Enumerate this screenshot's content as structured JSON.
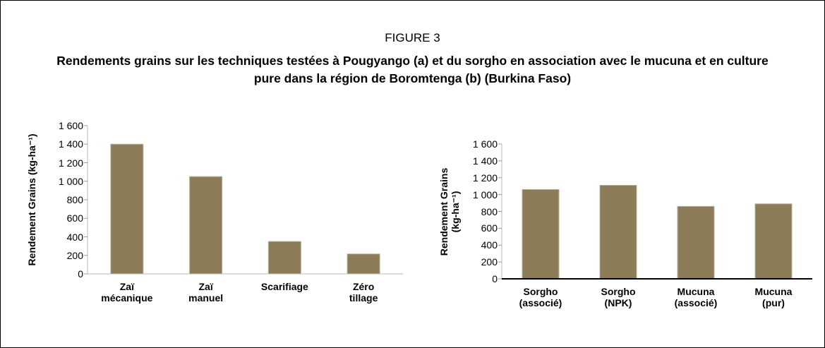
{
  "figure": "FIGURE 3",
  "title": "Rendements grains sur les techniques testées à Pougyango (a) et du sorgho en association avec le mucuna et en culture pure dans la région de Boromtenga (b) (Burkina Faso)",
  "chart_data": [
    {
      "type": "bar",
      "y_label": "Rendement Grains (kg-ha⁻¹)",
      "categories": [
        "Zaï mécanique",
        "Zaï manuel",
        "Scarifiage",
        "Zéro tillage"
      ],
      "values": [
        1400,
        1050,
        350,
        215
      ],
      "color": "#8c7b57",
      "ylim": [
        0,
        1600
      ],
      "yticks": [
        0,
        200,
        400,
        600,
        800,
        {
          "value": 1000,
          "label": "1 000"
        },
        {
          "value": 1200,
          "label": "1 200"
        },
        {
          "value": 1400,
          "label": "1 400"
        },
        {
          "value": 1600,
          "label": "1 600"
        }
      ]
    },
    {
      "type": "bar",
      "y_label": "Rendement Grains (kg-ha⁻¹)",
      "categories": [
        "Sorgho (associé)",
        "Sorgho (NPK)",
        "Mucuna (associé)",
        "Mucuna (pur)"
      ],
      "values": [
        1060,
        1110,
        860,
        890
      ],
      "color": "#8c7b57",
      "ylim": [
        0,
        1600
      ],
      "yticks": [
        0,
        200,
        400,
        600,
        800,
        {
          "value": 1000,
          "label": "1 000"
        },
        {
          "value": 1200,
          "label": "1 200"
        },
        {
          "value": 1400,
          "label": "1 400"
        },
        {
          "value": 1600,
          "label": "1 600"
        }
      ]
    }
  ]
}
